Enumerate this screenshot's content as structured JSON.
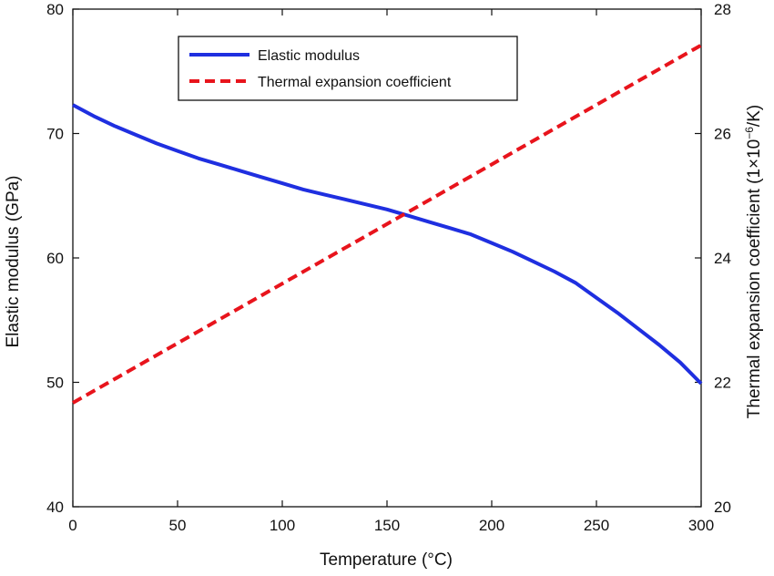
{
  "chart_data": {
    "type": "line",
    "xlabel": "Temperature (°C)",
    "ylabel_left": "Elastic modulus (GPa)",
    "ylabel_right": "Thermal expansion coefficient (1×10",
    "ylabel_right_sup": "−6",
    "ylabel_right_suffix": "/K)",
    "xlim": [
      0,
      300
    ],
    "ylim_left": [
      40,
      80
    ],
    "ylim_right": [
      20,
      28
    ],
    "x_ticks": [
      0,
      50,
      100,
      150,
      200,
      250,
      300
    ],
    "y_ticks_left": [
      40,
      50,
      60,
      70,
      80
    ],
    "y_ticks_right": [
      20,
      22,
      24,
      26,
      28
    ],
    "grid": false,
    "legend_position": "top-center",
    "series": [
      {
        "name": "Elastic modulus",
        "axis": "left",
        "color": "#1f2fe0",
        "style": "solid",
        "x": [
          0,
          10,
          20,
          30,
          40,
          50,
          60,
          70,
          80,
          90,
          100,
          110,
          120,
          130,
          140,
          150,
          160,
          170,
          180,
          190,
          200,
          210,
          220,
          230,
          240,
          250,
          260,
          270,
          280,
          290,
          300
        ],
        "values": [
          72.3,
          71.4,
          70.6,
          69.9,
          69.2,
          68.6,
          68.0,
          67.5,
          67.0,
          66.5,
          66.0,
          65.5,
          65.1,
          64.7,
          64.3,
          63.9,
          63.4,
          62.9,
          62.4,
          61.9,
          61.2,
          60.5,
          59.7,
          58.9,
          58.0,
          56.8,
          55.6,
          54.3,
          53.0,
          51.6,
          49.9
        ]
      },
      {
        "name": "Thermal expansion coefficient",
        "axis": "right",
        "color": "#e8141c",
        "style": "dashed",
        "x": [
          0,
          300
        ],
        "values": [
          21.67,
          27.42
        ]
      }
    ]
  }
}
